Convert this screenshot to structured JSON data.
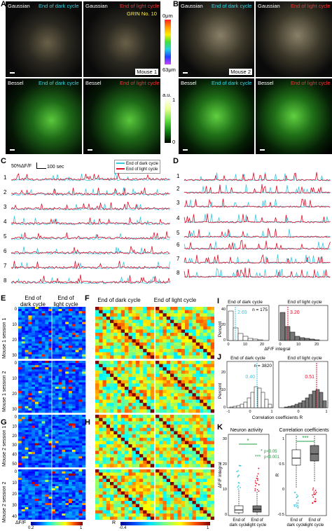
{
  "panels": {
    "A": "A",
    "B": "B",
    "C": "C",
    "D": "D",
    "E": "E",
    "F": "F",
    "G": "G",
    "H": "H",
    "I": "I",
    "J": "J",
    "K": "K"
  },
  "micro": {
    "gaussian": "Gaussian",
    "bessel": "Bessel",
    "dark": "End of dark cycle",
    "light": "End of light cycle",
    "grin": "GRIN No. 10",
    "mouse1": "Mouse 1",
    "mouse2": "Mouse 2",
    "depth_top": "0μm",
    "depth_bot": "63μm",
    "au": "a.u.",
    "cb_top": "1",
    "cb_bot": "0"
  },
  "traces": {
    "scale": "50%ΔF/F",
    "time": "100 sec",
    "legend_dark": "End of dark cycle",
    "legend_light": "End of light cycle",
    "rows": [
      "1",
      "2",
      "3",
      "4",
      "5",
      "6",
      "7",
      "8"
    ],
    "colors": {
      "dark": "#37c8e0",
      "light": "#e0102a"
    }
  },
  "heat": {
    "col_dark": "End of\ndark cycle",
    "col_light": "End of\nlight cycle",
    "col_dark_F": "End of dark cycle",
    "col_light_F": "End of light cycle",
    "m1s1": "Mouse 1 session 1",
    "m1s2": "Mouse 1 session 2",
    "m2s1": "Mouse 2 session 1",
    "m2s2": "Mouse 2 session 2",
    "ticks_E_top": [
      "0",
      "10",
      "20",
      "30"
    ],
    "ticks_E_bot": [
      "0",
      "10",
      "20",
      "30"
    ],
    "ticks_G_top": [
      "0",
      "10",
      "20",
      "30",
      "40",
      "50"
    ],
    "ticks_G_bot": [
      "0",
      "10",
      "20",
      "30",
      "40"
    ],
    "cb_E_label": "ΔF/F",
    "cb_E_min": "0.2",
    "cb_E_max": "1",
    "cb_H_label": "R",
    "cb_H_min": "-0.4",
    "cb_H_max": "1"
  },
  "hist_I": {
    "dark_title": "End of dark cycle",
    "light_title": "End of light cycle",
    "n": "n = 175",
    "mean_dark": "2.69",
    "mean_light": "3.20",
    "ylabel": "Percent",
    "xlabel": "ΔF/F integral",
    "yticks": [
      "0",
      "20",
      "40"
    ],
    "xticks_dark": [
      "0",
      "10",
      "20"
    ],
    "xticks_light": [
      "0",
      "10",
      "20"
    ]
  },
  "hist_J": {
    "dark_title": "End of dark cycle",
    "light_title": "End of light cycle",
    "n": "n = 3820",
    "mean_dark": "0.40",
    "mean_light": "0.51",
    "ylabel": "Percent",
    "xlabel": "Correlation coefficients R",
    "yticks": [
      "0",
      "10",
      "20"
    ],
    "xticks": [
      "-1",
      "0",
      "1",
      "0",
      "1"
    ]
  },
  "box_K": {
    "left_title": "Neuron activity",
    "right_title": "Correlation coefficients",
    "p1": "p<0.05",
    "p2": "p<0.001",
    "star1": "*",
    "star2": "***",
    "star3": "***",
    "ylabel_left": "ΔF/F integral",
    "ylabel_right": "R",
    "yticks_left": [
      "0",
      "10",
      "20",
      "30"
    ],
    "yticks_right": [
      "-0.5",
      "0",
      "0.5",
      "1"
    ],
    "xl_dark": "End of\ndark cycle",
    "xl_light": "End of\nlight cycle"
  }
}
